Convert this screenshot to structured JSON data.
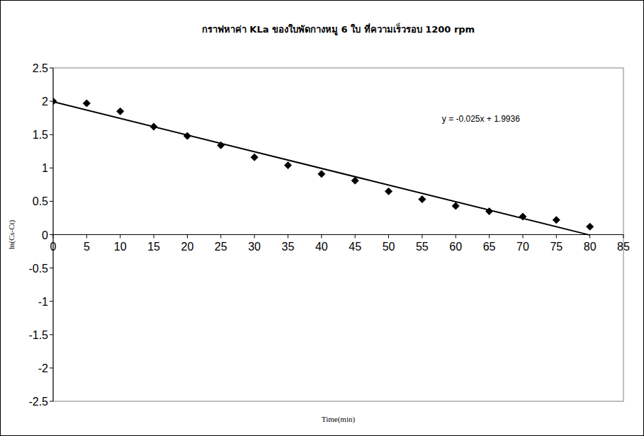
{
  "chart_data": {
    "type": "scatter",
    "title": "กราฟหาค่า KLa ของใบพัดกางหมู 6 ใบ ที่ความเร็วรอบ 1200 rpm",
    "x_label": "Time(min)",
    "y_label": "ln(Cs-Ct)",
    "series": [
      {
        "color": "#000000",
        "marker": "diamond",
        "x": [
          0,
          5,
          10,
          15,
          20,
          25,
          30,
          35,
          40,
          45,
          50,
          55,
          60,
          65,
          70,
          75,
          80
        ],
        "values": [
          2.0,
          1.97,
          1.85,
          1.62,
          1.48,
          1.34,
          1.16,
          1.04,
          0.91,
          0.81,
          0.65,
          0.53,
          0.43,
          0.35,
          0.27,
          0.22,
          0.12
        ]
      }
    ],
    "trendline": {
      "slope": -0.025,
      "intercept": 1.9936,
      "label": "y = -0.025x + 1.9936",
      "color": "#000000"
    },
    "xlim": [
      0,
      85
    ],
    "xticks": [
      0,
      5,
      10,
      15,
      20,
      25,
      30,
      35,
      40,
      45,
      50,
      55,
      60,
      65,
      70,
      75,
      80,
      85
    ],
    "ylim": [
      -2.5,
      2.5
    ],
    "yticks": [
      -2.5,
      -2,
      -1.5,
      -1,
      -0.5,
      0,
      0.5,
      1,
      1.5,
      2,
      2.5
    ],
    "grid": false
  }
}
